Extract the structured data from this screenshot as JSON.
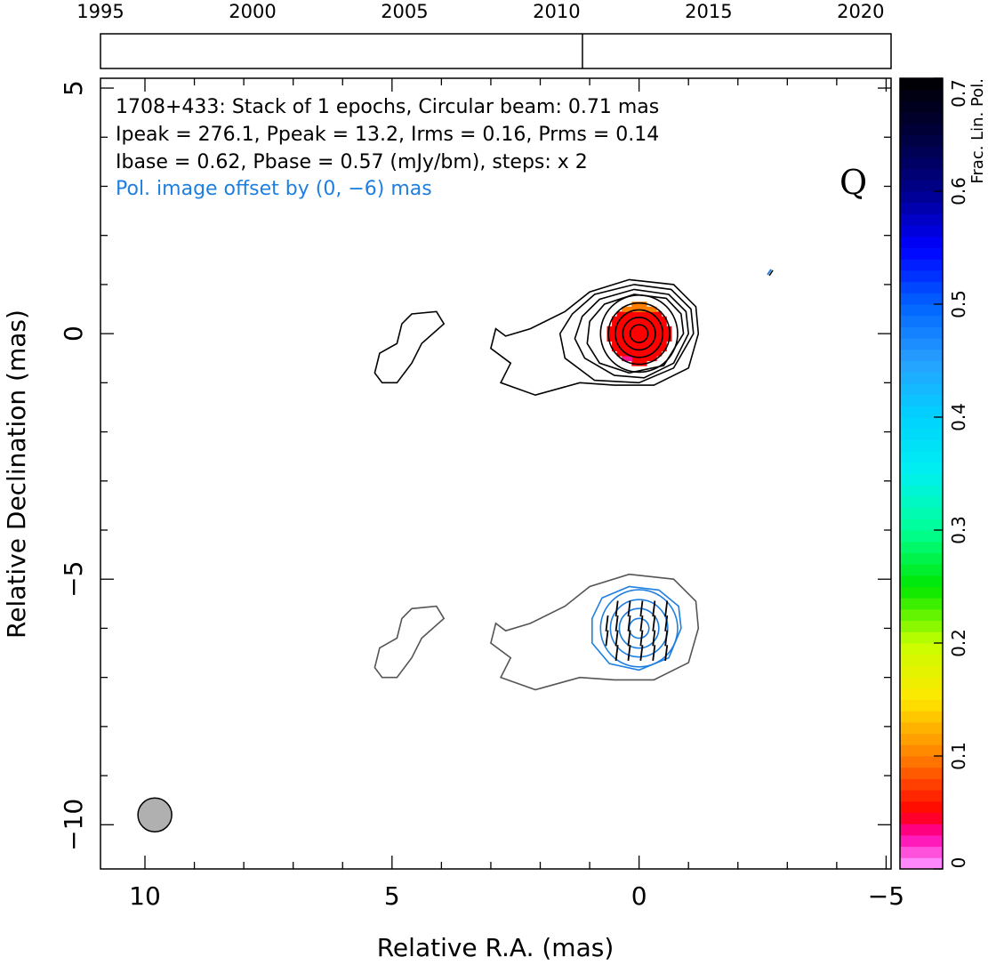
{
  "chart_data": {
    "type": "contour",
    "timeline": {
      "ticks": [
        "1995",
        "2000",
        "2005",
        "2010",
        "2015",
        "2020"
      ],
      "range": [
        1995,
        2021
      ],
      "epochs": [
        2010.85
      ]
    },
    "annotations": {
      "line1": "1708+433: Stack of 1 epochs, Circular beam: 0.71 mas",
      "line2": "Ipeak = 276.1, Ppeak = 13.2, Irms = 0.16, Prms = 0.14",
      "line3": "Ibase = 0.62, Pbase = 0.57 (mJy/bm), steps: x 2",
      "line4": "Pol. image offset by (0, −6) mas",
      "quality": "Q"
    },
    "xlabel": "Relative R.A. (mas)",
    "ylabel": "Relative Declination (mas)",
    "xlim": [
      10.9,
      -5.1
    ],
    "ylim": [
      -10.9,
      5.2
    ],
    "xticks": [
      "10",
      "5",
      "0",
      "−5"
    ],
    "xtick_values": [
      10,
      5,
      0,
      -5
    ],
    "yticks": [
      "5",
      "0",
      "−5",
      "−10"
    ],
    "ytick_values": [
      5,
      0,
      -5,
      -10
    ],
    "beam": {
      "ra": 9.8,
      "dec": -9.8,
      "diameter": 0.71
    },
    "colorbar": {
      "label": "Frac. Lin. Pol.",
      "ticks": [
        "0",
        "0.1",
        "0.2",
        "0.3",
        "0.4",
        "0.5",
        "0.6",
        "0.7"
      ],
      "tick_values": [
        0,
        0.1,
        0.2,
        0.3,
        0.4,
        0.5,
        0.6,
        0.7
      ],
      "range": [
        0,
        0.7
      ]
    },
    "contour_color_total": "#000000",
    "contour_color_offset": "#555555",
    "contour_color_pol": "#1e7fe0",
    "evpa_color": "#000000",
    "fracpol_core_color": "#ff0000",
    "fracpol_edge_color": "#ff8000",
    "core": {
      "ra": 0,
      "dec": 0,
      "ring_radii_mas": [
        0.18,
        0.33,
        0.48,
        0.62,
        0.78
      ],
      "outer_contours": [
        [
          [
            -1.2,
            0.0
          ],
          [
            -1.15,
            0.55
          ],
          [
            -0.7,
            1.0
          ],
          [
            0.2,
            1.1
          ],
          [
            1.0,
            0.85
          ],
          [
            1.5,
            0.45
          ],
          [
            2.2,
            0.1
          ],
          [
            2.7,
            -0.05
          ],
          [
            2.9,
            0.1
          ],
          [
            3.0,
            -0.3
          ],
          [
            2.6,
            -0.6
          ],
          [
            2.8,
            -1.0
          ],
          [
            2.1,
            -1.25
          ],
          [
            1.2,
            -1.0
          ],
          [
            0.5,
            -1.05
          ],
          [
            -0.3,
            -1.05
          ],
          [
            -1.0,
            -0.7
          ],
          [
            -1.2,
            0.0
          ]
        ],
        [
          [
            -1.1,
            0.0
          ],
          [
            -1.05,
            0.5
          ],
          [
            -0.65,
            0.9
          ],
          [
            0.1,
            1.0
          ],
          [
            0.9,
            0.8
          ],
          [
            1.35,
            0.4
          ],
          [
            1.6,
            0.0
          ],
          [
            1.5,
            -0.5
          ],
          [
            0.9,
            -0.95
          ],
          [
            0.0,
            -1.0
          ],
          [
            -0.7,
            -0.7
          ],
          [
            -1.1,
            0.0
          ]
        ],
        [
          [
            -1.0,
            0.0
          ],
          [
            -0.95,
            0.45
          ],
          [
            -0.6,
            0.8
          ],
          [
            0.1,
            0.9
          ],
          [
            0.8,
            0.7
          ],
          [
            1.15,
            0.35
          ],
          [
            1.3,
            -0.1
          ],
          [
            1.1,
            -0.5
          ],
          [
            0.5,
            -0.85
          ],
          [
            -0.1,
            -0.9
          ],
          [
            -0.7,
            -0.6
          ],
          [
            -1.0,
            0.0
          ]
        ],
        [
          [
            -0.9,
            0.0
          ],
          [
            -0.85,
            0.4
          ],
          [
            -0.55,
            0.72
          ],
          [
            0.1,
            0.8
          ],
          [
            0.7,
            0.6
          ],
          [
            1.0,
            0.25
          ],
          [
            1.05,
            -0.2
          ],
          [
            0.8,
            -0.6
          ],
          [
            0.2,
            -0.8
          ],
          [
            -0.5,
            -0.65
          ],
          [
            -0.9,
            0.0
          ]
        ]
      ],
      "jet_blob": [
        [
          4.9,
          -0.2
        ],
        [
          4.8,
          0.2
        ],
        [
          4.6,
          0.4
        ],
        [
          4.1,
          0.45
        ],
        [
          3.95,
          0.2
        ],
        [
          4.4,
          -0.2
        ],
        [
          4.6,
          -0.6
        ],
        [
          4.9,
          -1.0
        ],
        [
          5.2,
          -1.0
        ],
        [
          5.35,
          -0.8
        ],
        [
          5.25,
          -0.4
        ],
        [
          4.9,
          -0.2
        ]
      ]
    },
    "polarization_image": {
      "offset_dec": -6,
      "pol_ring_radii_mas": [
        0.2,
        0.4,
        0.58,
        0.78
      ],
      "pol_outer_contour": [
        [
          -0.85,
          0.0
        ],
        [
          -0.8,
          0.45
        ],
        [
          -0.4,
          0.78
        ],
        [
          0.2,
          0.85
        ],
        [
          0.75,
          0.62
        ],
        [
          0.95,
          0.2
        ],
        [
          0.95,
          -0.3
        ],
        [
          0.6,
          -0.72
        ],
        [
          0.0,
          -0.85
        ],
        [
          -0.6,
          -0.6
        ],
        [
          -0.85,
          0.0
        ]
      ],
      "evpa_ra": [
        -0.55,
        -0.3,
        -0.05,
        0.2,
        0.45,
        0.65
      ],
      "evpa_dec_offsets": [
        -0.5,
        -0.2,
        0.1,
        0.4
      ],
      "evpa_tilt": 0.12,
      "evpa_half_length": 0.16
    },
    "flag_marker": {
      "ra": -2.6,
      "dec": 1.2
    }
  }
}
